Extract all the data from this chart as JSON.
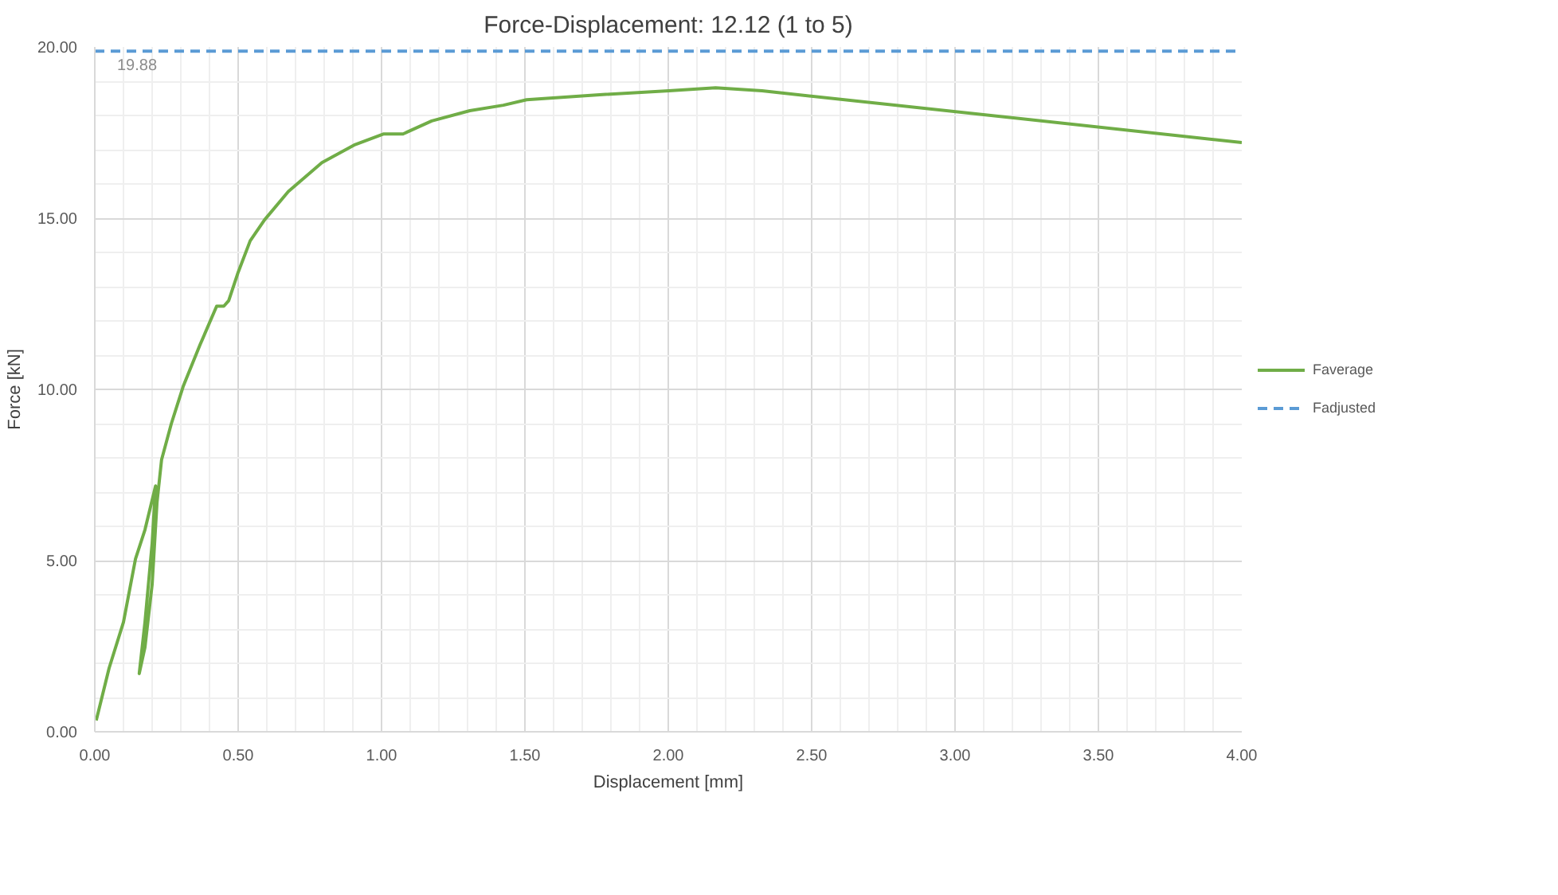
{
  "chart_data": {
    "type": "line",
    "title": "Force-Displacement: 12.12 (1 to 5)",
    "xlabel": "Displacement [mm]",
    "ylabel": "Force [kN]",
    "xlim": [
      0,
      4
    ],
    "ylim": [
      0,
      20
    ],
    "xticks": [
      {
        "value": 0,
        "label": "0.00"
      },
      {
        "value": 0.5,
        "label": "0.50"
      },
      {
        "value": 1,
        "label": "1.00"
      },
      {
        "value": 1.5,
        "label": "1.50"
      },
      {
        "value": 2,
        "label": "2.00"
      },
      {
        "value": 2.5,
        "label": "2.50"
      },
      {
        "value": 3,
        "label": "3.00"
      },
      {
        "value": 3.5,
        "label": "3.50"
      },
      {
        "value": 4,
        "label": "4.00"
      }
    ],
    "yticks": [
      {
        "value": 0,
        "label": "0.00"
      },
      {
        "value": 5,
        "label": "5.00"
      },
      {
        "value": 10,
        "label": "10.00"
      },
      {
        "value": 15,
        "label": "15.00"
      },
      {
        "value": 20,
        "label": "20.00"
      }
    ],
    "grid": true,
    "legend": "right",
    "line_style": "solid",
    "series": [
      {
        "name": "Faverage",
        "color": "#70ad47",
        "x": [
          0.005,
          0.05,
          0.1,
          0.142,
          0.175,
          0.212,
          0.2,
          0.175,
          0.155,
          0.175,
          0.2,
          0.217,
          0.233,
          0.267,
          0.308,
          0.367,
          0.425,
          0.45,
          0.467,
          0.5,
          0.542,
          0.592,
          0.675,
          0.792,
          0.908,
          1.008,
          1.075,
          1.175,
          1.308,
          1.425,
          1.506,
          1.75,
          2.002,
          2.165,
          2.327,
          4.0
        ],
        "values": [
          0.33,
          1.86,
          3.2,
          5.05,
          5.9,
          7.18,
          5.5,
          3.2,
          1.7,
          2.47,
          4.3,
          6.7,
          7.95,
          9.0,
          10.08,
          11.3,
          12.43,
          12.43,
          12.59,
          13.42,
          14.34,
          14.95,
          15.78,
          16.62,
          17.15,
          17.46,
          17.46,
          17.84,
          18.14,
          18.3,
          18.46,
          18.6,
          18.72,
          18.81,
          18.72,
          17.21
        ]
      },
      {
        "name": "Fadjusted",
        "color": "#5b9bd5",
        "line_style": "dashed",
        "x": [
          0,
          4
        ],
        "values": [
          19.88,
          19.88
        ]
      }
    ],
    "annotations": [
      {
        "text": "19.88",
        "x": 0,
        "y": 19.88
      }
    ]
  }
}
